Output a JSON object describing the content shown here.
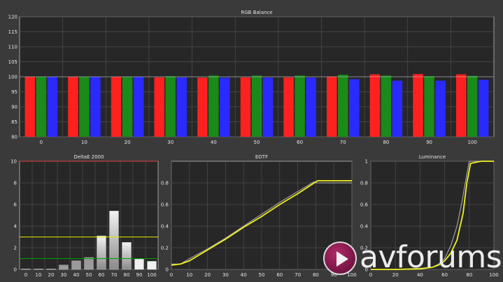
{
  "chart_data": [
    {
      "type": "bar",
      "title": "RGB Balance",
      "categories": [
        "0",
        "10",
        "20",
        "30",
        "40",
        "50",
        "60",
        "70",
        "80",
        "90",
        "100"
      ],
      "series": [
        {
          "color": "#ff2020",
          "values": [
            100.0,
            100.0,
            100.0,
            99.8,
            99.7,
            99.8,
            99.8,
            100.1,
            100.8,
            100.9,
            100.8
          ]
        },
        {
          "color": "#1a8a1a",
          "values": [
            100.0,
            100.0,
            100.0,
            100.2,
            100.4,
            100.4,
            100.4,
            100.7,
            100.4,
            100.2,
            100.3
          ]
        },
        {
          "color": "#2a2aff",
          "values": [
            100.0,
            100.0,
            100.0,
            99.8,
            99.7,
            99.7,
            99.7,
            99.2,
            98.7,
            98.7,
            99.0
          ]
        }
      ],
      "ylim": [
        80,
        120
      ],
      "yticks": [
        "80",
        "85",
        "90",
        "95",
        "100",
        "105",
        "110",
        "115",
        "120"
      ],
      "ref_line": 100,
      "grid": true
    },
    {
      "type": "bar",
      "title": "DeltaE 2000",
      "categories": [
        "0",
        "10",
        "20",
        "30",
        "40",
        "50",
        "60",
        "70",
        "80",
        "90",
        "100"
      ],
      "values": [
        0.05,
        0.05,
        0.05,
        0.4,
        0.8,
        1.1,
        3.1,
        5.4,
        2.5,
        0.95,
        0.75
      ],
      "ylim": [
        0,
        10
      ],
      "yticks": [
        "0",
        "2",
        "4",
        "6",
        "8",
        "10"
      ],
      "thresholds": [
        {
          "value": 3,
          "color": "#e6e600"
        },
        {
          "value": 1,
          "color": "#00a000"
        },
        {
          "value": 10,
          "color": "#e04040"
        }
      ],
      "grid": true
    },
    {
      "type": "line",
      "title": "EOTF",
      "xlim": [
        0,
        100
      ],
      "ylim": [
        0,
        1
      ],
      "xticks": [
        "0",
        "10",
        "20",
        "30",
        "40",
        "50",
        "60",
        "70",
        "80",
        "90",
        "100"
      ],
      "yticks": [
        "0",
        "0.2",
        "0.4",
        "0.6",
        "0.8"
      ],
      "series": [
        {
          "color": "#a0a0a0",
          "x": [
            0,
            5,
            10,
            20,
            30,
            40,
            50,
            60,
            70,
            79,
            80,
            90,
            100
          ],
          "y": [
            0.05,
            0.05,
            0.1,
            0.19,
            0.29,
            0.4,
            0.51,
            0.62,
            0.72,
            0.81,
            0.8,
            0.8,
            0.8
          ]
        },
        {
          "color": "#f0f020",
          "x": [
            0,
            5,
            10,
            20,
            30,
            40,
            50,
            60,
            70,
            81,
            82,
            90,
            100
          ],
          "y": [
            0.04,
            0.05,
            0.08,
            0.18,
            0.28,
            0.39,
            0.49,
            0.6,
            0.7,
            0.82,
            0.82,
            0.82,
            0.82
          ]
        }
      ],
      "grid": true
    },
    {
      "type": "line",
      "title": "Luminance",
      "xlim": [
        0,
        100
      ],
      "ylim": [
        0,
        1
      ],
      "xticks": [
        "0",
        "20",
        "40",
        "60",
        "80",
        "100"
      ],
      "yticks": [
        "0",
        "0.2",
        "0.4",
        "0.6",
        "0.8",
        "1"
      ],
      "series": [
        {
          "color": "#a0a0a0",
          "x": [
            0,
            20,
            40,
            50,
            55,
            60,
            65,
            70,
            74,
            78,
            80,
            85,
            90,
            100
          ],
          "y": [
            0,
            0,
            0.01,
            0.02,
            0.05,
            0.1,
            0.22,
            0.4,
            0.62,
            0.88,
            1.0,
            1.0,
            1.0,
            1.0
          ]
        },
        {
          "color": "#f0f020",
          "x": [
            0,
            20,
            40,
            50,
            55,
            60,
            65,
            70,
            75,
            78,
            81,
            85,
            90,
            100
          ],
          "y": [
            0,
            0,
            0.005,
            0.02,
            0.04,
            0.08,
            0.15,
            0.27,
            0.52,
            0.8,
            0.98,
            0.99,
            1.0,
            1.0
          ]
        }
      ],
      "grid": true
    }
  ],
  "watermark": {
    "brand": "avforums",
    "logo": "avforums-play-logo"
  }
}
